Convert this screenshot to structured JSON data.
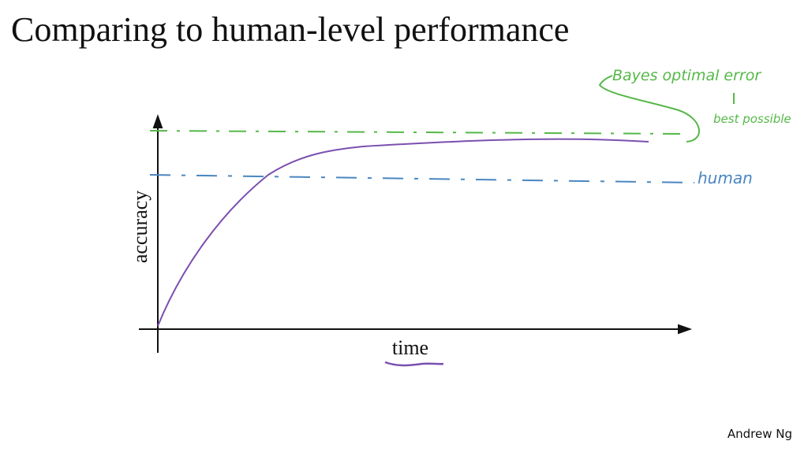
{
  "title": "Comparing to human-level performance",
  "diagram": {
    "y_axis_label": "accuracy",
    "x_axis_label": "time",
    "annotations": {
      "bayes": "Bayes optimal error",
      "bayes_note": "best possible",
      "human": "human"
    }
  },
  "footer": "Andrew Ng"
}
